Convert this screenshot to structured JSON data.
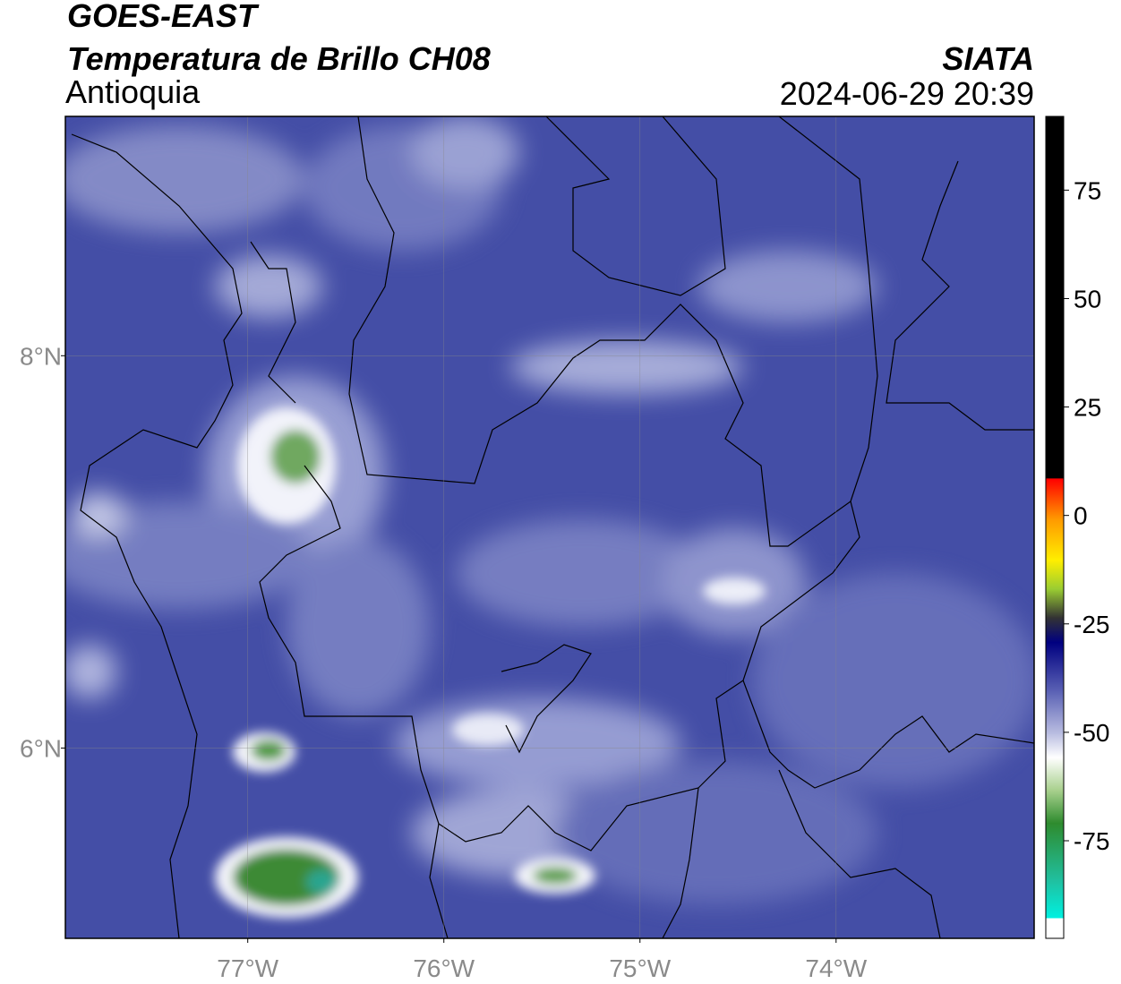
{
  "header": {
    "title": "GOES-EAST",
    "subtitle": "Temperatura de Brillo CH08",
    "region": "Antioquia",
    "source": "SIATA",
    "timestamp": "2024-06-29 20:39"
  },
  "map": {
    "xlim": [
      -77.93,
      -72.99
    ],
    "ylim": [
      5.03,
      9.22
    ],
    "xticks": [
      {
        "value": -77,
        "label": "77°W"
      },
      {
        "value": -76,
        "label": "76°W"
      },
      {
        "value": -75,
        "label": "75°W"
      },
      {
        "value": -74,
        "label": "74°W"
      }
    ],
    "yticks": [
      {
        "value": 8,
        "label": "8°N"
      },
      {
        "value": 6,
        "label": "6°N"
      }
    ],
    "grid": true
  },
  "colorbar": {
    "lim": [
      -97.5,
      92
    ],
    "ticks": [
      75,
      50,
      25,
      0,
      -25,
      -50,
      -75
    ]
  }
}
